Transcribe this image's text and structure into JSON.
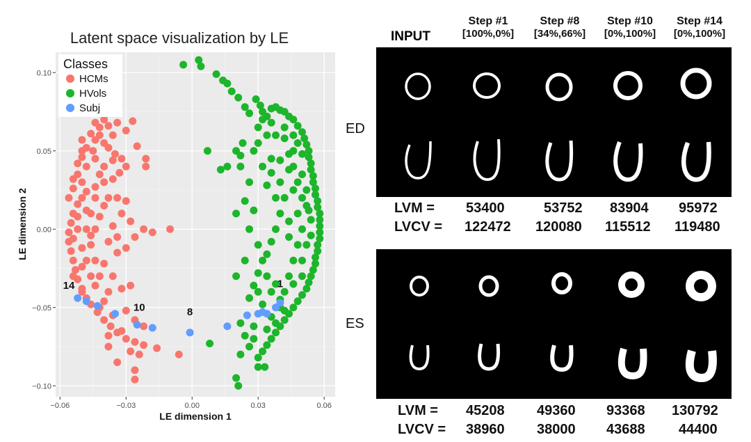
{
  "chart_data": {
    "type": "scatter",
    "title": "Latent space visualization by LE",
    "xlabel": "LE dimension 1",
    "ylabel": "LE dimension 2",
    "xlim": [
      -0.062,
      0.065
    ],
    "ylim": [
      -0.107,
      0.113
    ],
    "x_ticks": [
      -0.06,
      -0.03,
      0.0,
      0.03,
      0.06
    ],
    "x_tick_labels": [
      "−0.06",
      "−0.03",
      "0.00",
      "0.03",
      "0.06"
    ],
    "y_ticks": [
      -0.1,
      -0.05,
      0.0,
      0.05,
      0.1
    ],
    "y_tick_labels": [
      "−0.10",
      "−0.05",
      "0.00",
      "0.05",
      "0.10"
    ],
    "grid": true,
    "legend": {
      "title": "Classes",
      "position": "top-left",
      "entries": [
        {
          "label": "HCMs",
          "color": "#F8766D"
        },
        {
          "label": "HVols",
          "color": "#1DB52B"
        },
        {
          "label": "Subj",
          "color": "#619CFF"
        }
      ]
    },
    "series": [
      {
        "name": "HCMs",
        "color": "#F8766D",
        "points": [
          [
            -0.021,
            0.045
          ],
          [
            -0.025,
            0.053
          ],
          [
            -0.021,
            0.04
          ],
          [
            -0.03,
            0.063
          ],
          [
            -0.027,
            0.069
          ],
          [
            -0.034,
            0.068
          ],
          [
            -0.038,
            0.066
          ],
          [
            -0.042,
            0.065
          ],
          [
            -0.046,
            0.061
          ],
          [
            -0.044,
            0.057
          ],
          [
            -0.04,
            0.055
          ],
          [
            -0.038,
            0.052
          ],
          [
            -0.035,
            0.048
          ],
          [
            -0.032,
            0.045
          ],
          [
            -0.03,
            0.04
          ],
          [
            -0.033,
            0.036
          ],
          [
            -0.036,
            0.032
          ],
          [
            -0.04,
            0.03
          ],
          [
            -0.044,
            0.027
          ],
          [
            -0.048,
            0.024
          ],
          [
            -0.05,
            0.02
          ],
          [
            -0.052,
            0.016
          ],
          [
            -0.054,
            0.01
          ],
          [
            -0.055,
            0.004
          ],
          [
            -0.056,
            -0.002
          ],
          [
            -0.056,
            -0.008
          ],
          [
            -0.055,
            -0.014
          ],
          [
            -0.054,
            -0.02
          ],
          [
            -0.053,
            -0.026
          ],
          [
            -0.052,
            -0.032
          ],
          [
            -0.05,
            -0.038
          ],
          [
            -0.048,
            -0.044
          ],
          [
            -0.046,
            -0.048
          ],
          [
            -0.043,
            -0.053
          ],
          [
            -0.04,
            -0.058
          ],
          [
            -0.037,
            -0.062
          ],
          [
            -0.034,
            -0.066
          ],
          [
            -0.038,
            -0.068
          ],
          [
            -0.03,
            -0.07
          ],
          [
            -0.026,
            -0.072
          ],
          [
            -0.022,
            -0.074
          ],
          [
            -0.016,
            -0.076
          ],
          [
            -0.006,
            -0.08
          ],
          [
            -0.026,
            -0.09
          ],
          [
            -0.034,
            -0.085
          ],
          [
            -0.026,
            -0.096
          ],
          [
            -0.048,
            0.0
          ],
          [
            -0.046,
            0.01
          ],
          [
            -0.044,
            0.02
          ],
          [
            -0.042,
            0.035
          ],
          [
            -0.048,
            0.04
          ],
          [
            -0.05,
            0.046
          ],
          [
            -0.045,
            0.05
          ],
          [
            -0.05,
            0.03
          ],
          [
            -0.052,
            0.035
          ],
          [
            -0.046,
            -0.01
          ],
          [
            -0.044,
            -0.02
          ],
          [
            -0.042,
            -0.03
          ],
          [
            -0.038,
            -0.04
          ],
          [
            -0.046,
            -0.03
          ],
          [
            -0.048,
            -0.02
          ],
          [
            -0.052,
            0.0
          ],
          [
            -0.054,
            -0.006
          ],
          [
            -0.05,
            -0.012
          ],
          [
            -0.044,
            0.0
          ],
          [
            -0.042,
            0.008
          ],
          [
            -0.04,
            0.015
          ],
          [
            -0.038,
            0.02
          ],
          [
            -0.034,
            0.02
          ],
          [
            -0.03,
            0.018
          ],
          [
            -0.032,
            0.01
          ],
          [
            -0.036,
            0.002
          ],
          [
            -0.038,
            -0.008
          ],
          [
            -0.034,
            -0.015
          ],
          [
            -0.03,
            -0.012
          ],
          [
            -0.026,
            -0.005
          ],
          [
            -0.022,
            0.0
          ],
          [
            -0.018,
            -0.002
          ],
          [
            -0.01,
            0.0
          ],
          [
            -0.03,
            -0.052
          ],
          [
            -0.026,
            -0.058
          ],
          [
            -0.022,
            -0.062
          ],
          [
            -0.036,
            -0.055
          ],
          [
            -0.04,
            -0.046
          ],
          [
            -0.042,
            -0.05
          ],
          [
            -0.032,
            -0.065
          ],
          [
            -0.028,
            -0.078
          ],
          [
            -0.024,
            -0.08
          ],
          [
            -0.044,
            0.045
          ],
          [
            -0.048,
            0.052
          ],
          [
            -0.054,
            0.026
          ],
          [
            -0.056,
            0.02
          ],
          [
            -0.054,
            0.032
          ],
          [
            -0.05,
            0.057
          ],
          [
            -0.042,
            0.06
          ],
          [
            -0.036,
            0.06
          ],
          [
            -0.052,
            0.008
          ],
          [
            -0.048,
            0.012
          ],
          [
            -0.046,
            -0.004
          ],
          [
            -0.05,
            -0.024
          ],
          [
            -0.044,
            -0.036
          ],
          [
            -0.04,
            -0.022
          ],
          [
            -0.036,
            -0.03
          ],
          [
            -0.032,
            -0.038
          ],
          [
            -0.028,
            -0.036
          ],
          [
            -0.034,
            -0.005
          ],
          [
            -0.028,
            0.005
          ],
          [
            -0.04,
            0.04
          ],
          [
            -0.036,
            0.044
          ],
          [
            -0.044,
            0.068
          ],
          [
            -0.04,
            0.07
          ],
          [
            -0.05,
            0.05
          ],
          [
            -0.052,
            0.042
          ],
          [
            -0.054,
            -0.03
          ],
          [
            -0.05,
            -0.04
          ],
          [
            -0.038,
            -0.075
          ]
        ]
      },
      {
        "name": "HVols",
        "color": "#1DB52B",
        "points": [
          [
            -0.004,
            0.105
          ],
          [
            0.003,
            0.108
          ],
          [
            0.004,
            0.104
          ],
          [
            0.011,
            0.099
          ],
          [
            0.014,
            0.095
          ],
          [
            0.016,
            0.093
          ],
          [
            0.018,
            0.088
          ],
          [
            0.021,
            0.084
          ],
          [
            0.029,
            0.083
          ],
          [
            0.031,
            0.079
          ],
          [
            0.032,
            0.075
          ],
          [
            0.024,
            0.078
          ],
          [
            0.026,
            0.074
          ],
          [
            0.034,
            0.072
          ],
          [
            0.036,
            0.077
          ],
          [
            0.038,
            0.078
          ],
          [
            0.04,
            0.076
          ],
          [
            0.042,
            0.075
          ],
          [
            0.044,
            0.072
          ],
          [
            0.046,
            0.07
          ],
          [
            0.048,
            0.066
          ],
          [
            0.05,
            0.062
          ],
          [
            0.051,
            0.058
          ],
          [
            0.052,
            0.054
          ],
          [
            0.053,
            0.05
          ],
          [
            0.053,
            0.046
          ],
          [
            0.054,
            0.042
          ],
          [
            0.054,
            0.038
          ],
          [
            0.055,
            0.034
          ],
          [
            0.055,
            0.03
          ],
          [
            0.056,
            0.026
          ],
          [
            0.056,
            0.022
          ],
          [
            0.057,
            0.018
          ],
          [
            0.057,
            0.014
          ],
          [
            0.058,
            0.01
          ],
          [
            0.058,
            0.006
          ],
          [
            0.058,
            0.002
          ],
          [
            0.058,
            -0.002
          ],
          [
            0.058,
            -0.006
          ],
          [
            0.057,
            -0.01
          ],
          [
            0.057,
            -0.014
          ],
          [
            0.056,
            -0.018
          ],
          [
            0.056,
            -0.022
          ],
          [
            0.055,
            -0.026
          ],
          [
            0.054,
            -0.03
          ],
          [
            0.053,
            -0.034
          ],
          [
            0.052,
            -0.038
          ],
          [
            0.05,
            -0.042
          ],
          [
            0.048,
            -0.046
          ],
          [
            0.046,
            -0.05
          ],
          [
            0.044,
            -0.054
          ],
          [
            0.042,
            -0.058
          ],
          [
            0.04,
            -0.062
          ],
          [
            0.038,
            -0.066
          ],
          [
            0.036,
            -0.07
          ],
          [
            0.034,
            -0.074
          ],
          [
            0.032,
            -0.078
          ],
          [
            0.03,
            -0.082
          ],
          [
            0.03,
            -0.088
          ],
          [
            0.033,
            -0.088
          ],
          [
            0.021,
            -0.1
          ],
          [
            0.02,
            -0.095
          ],
          [
            0.022,
            -0.08
          ],
          [
            0.026,
            -0.075
          ],
          [
            0.024,
            -0.068
          ],
          [
            0.028,
            -0.062
          ],
          [
            0.008,
            -0.073
          ],
          [
            0.022,
            -0.06
          ],
          [
            0.02,
            0.05
          ],
          [
            0.022,
            0.047
          ],
          [
            0.023,
            0.055
          ],
          [
            0.007,
            0.05
          ],
          [
            0.016,
            0.04
          ],
          [
            0.013,
            0.038
          ],
          [
            0.022,
            0.04
          ],
          [
            0.028,
            0.05
          ],
          [
            0.03,
            0.055
          ],
          [
            0.034,
            0.06
          ],
          [
            0.038,
            0.06
          ],
          [
            0.042,
            0.058
          ],
          [
            0.046,
            0.05
          ],
          [
            0.04,
            0.044
          ],
          [
            0.044,
            0.038
          ],
          [
            0.048,
            0.03
          ],
          [
            0.05,
            0.02
          ],
          [
            0.048,
            0.01
          ],
          [
            0.05,
            0.0
          ],
          [
            0.048,
            -0.01
          ],
          [
            0.046,
            -0.02
          ],
          [
            0.044,
            -0.03
          ],
          [
            0.042,
            -0.04
          ],
          [
            0.04,
            -0.05
          ],
          [
            0.046,
            0.04
          ],
          [
            0.05,
            0.048
          ],
          [
            0.046,
            0.06
          ],
          [
            0.042,
            0.065
          ],
          [
            0.036,
            0.068
          ],
          [
            0.032,
            0.07
          ],
          [
            0.03,
            0.065
          ],
          [
            0.04,
            0.03
          ],
          [
            0.036,
            0.036
          ],
          [
            0.034,
            0.028
          ],
          [
            0.038,
            0.02
          ],
          [
            0.04,
            0.01
          ],
          [
            0.038,
            0.0
          ],
          [
            0.036,
            -0.008
          ],
          [
            0.034,
            -0.016
          ],
          [
            0.032,
            -0.02
          ],
          [
            0.03,
            -0.028
          ],
          [
            0.028,
            -0.036
          ],
          [
            0.026,
            -0.044
          ],
          [
            0.03,
            -0.04
          ],
          [
            0.032,
            -0.048
          ],
          [
            0.036,
            -0.056
          ],
          [
            0.038,
            -0.06
          ],
          [
            0.034,
            -0.064
          ],
          [
            0.028,
            -0.07
          ],
          [
            0.044,
            -0.005
          ],
          [
            0.044,
            0.005
          ],
          [
            0.052,
            0.015
          ],
          [
            0.052,
            0.025
          ],
          [
            0.05,
            0.035
          ],
          [
            0.052,
            -0.01
          ],
          [
            0.05,
            -0.02
          ],
          [
            0.05,
            -0.03
          ],
          [
            0.054,
            -0.004
          ],
          [
            0.054,
            0.006
          ],
          [
            0.053,
            0.012
          ],
          [
            0.046,
            0.025
          ],
          [
            0.046,
            -0.035
          ],
          [
            0.04,
            -0.045
          ],
          [
            0.036,
            0.045
          ],
          [
            0.032,
            0.04
          ],
          [
            0.026,
            0.03
          ],
          [
            0.024,
            0.018
          ],
          [
            0.028,
            0.012
          ],
          [
            0.026,
            0.0
          ],
          [
            0.03,
            -0.01
          ],
          [
            0.024,
            -0.02
          ],
          [
            0.02,
            -0.03
          ],
          [
            0.02,
            0.01
          ],
          [
            0.042,
            0.02
          ],
          [
            0.044,
            0.048
          ],
          [
            0.048,
            0.055
          ],
          [
            0.036,
            -0.04
          ],
          [
            0.042,
            -0.052
          ],
          [
            0.038,
            -0.035
          ],
          [
            0.034,
            -0.03
          ]
        ]
      },
      {
        "name": "Subj",
        "color": "#619CFF",
        "points": [
          [
            -0.052,
            -0.044
          ],
          [
            -0.048,
            -0.046
          ],
          [
            -0.043,
            -0.049
          ],
          [
            -0.035,
            -0.054
          ],
          [
            -0.025,
            -0.061
          ],
          [
            -0.018,
            -0.063
          ],
          [
            -0.001,
            -0.066
          ],
          [
            0.016,
            -0.062
          ],
          [
            0.025,
            -0.055
          ],
          [
            0.03,
            -0.054
          ],
          [
            0.032,
            -0.053
          ],
          [
            0.034,
            -0.054
          ],
          [
            0.038,
            -0.05
          ],
          [
            0.04,
            -0.047
          ]
        ]
      }
    ],
    "annotations": [
      {
        "text": "14",
        "x": -0.056,
        "y": -0.038
      },
      {
        "text": "10",
        "x": -0.024,
        "y": -0.052
      },
      {
        "text": "8",
        "x": -0.001,
        "y": -0.055
      },
      {
        "text": "1",
        "x": 0.04,
        "y": -0.037
      }
    ]
  },
  "panel": {
    "input_label": "INPUT",
    "steps": [
      {
        "title": "Step #1",
        "ratio": "[100%,0%]"
      },
      {
        "title": "Step #8",
        "ratio": "[34%,66%]"
      },
      {
        "title": "Step #10",
        "ratio": "[0%,100%]"
      },
      {
        "title": "Step #14",
        "ratio": "[0%,100%]"
      }
    ],
    "ed_label": "ED",
    "es_label": "ES",
    "ed_metrics": {
      "lvm_label": "LVM   =",
      "lvcv_label": "LVCV =",
      "lvm_values": [
        "53400",
        "53752",
        "83904",
        "95972"
      ],
      "lvcv_values": [
        "122472",
        "120080",
        "115512",
        "119480"
      ]
    },
    "es_metrics": {
      "lvm_label": "LVM   =",
      "lvcv_label": "LVCV =",
      "lvm_values": [
        "45208",
        "49360",
        "93368",
        "130792"
      ],
      "lvcv_values": [
        "38960",
        "38000",
        "43688",
        "44400"
      ]
    }
  }
}
